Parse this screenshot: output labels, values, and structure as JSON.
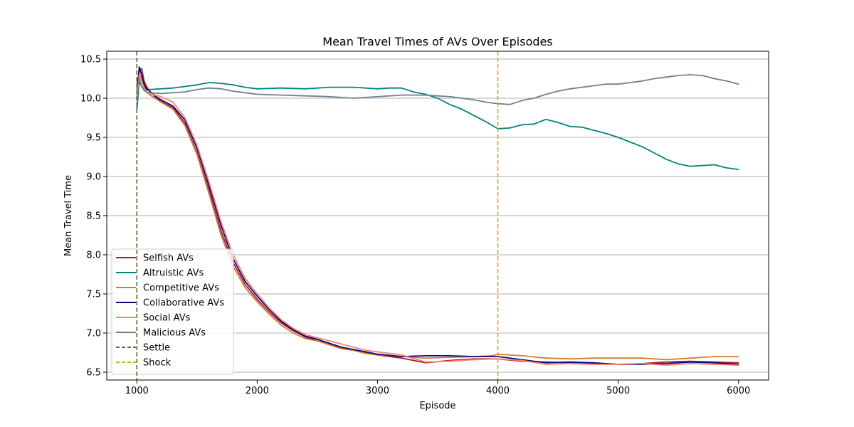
{
  "chart_data": {
    "type": "line",
    "title": "Mean Travel Times of AVs Over Episodes",
    "xlabel": "Episode",
    "ylabel": "Mean Travel Time",
    "xlim": [
      750,
      6250
    ],
    "ylim": [
      6.4,
      10.6
    ],
    "xticks": [
      1000,
      2000,
      3000,
      4000,
      5000,
      6000
    ],
    "xtick_labels": [
      "1000",
      "2000",
      "3000",
      "4000",
      "5000",
      "6000"
    ],
    "yticks": [
      6.5,
      7.0,
      7.5,
      8.0,
      8.5,
      9.0,
      9.5,
      10.0,
      10.5
    ],
    "ytick_labels": [
      "6.5",
      "7.0",
      "7.5",
      "8.0",
      "8.5",
      "9.0",
      "9.5",
      "10.0",
      "10.5"
    ],
    "grid": "horizontal",
    "legend_position": "lower-left",
    "series": [
      {
        "name": "Selfish AVs",
        "color": "#b2182b",
        "x": [
          1000,
          1020,
          1040,
          1060,
          1080,
          1100,
          1150,
          1200,
          1300,
          1400,
          1500,
          1600,
          1700,
          1800,
          1900,
          2000,
          2100,
          2200,
          2300,
          2400,
          2500,
          2600,
          2700,
          2800,
          2900,
          3000,
          3200,
          3400,
          3600,
          3800,
          4000,
          4200,
          4400,
          4600,
          4800,
          5000,
          5200,
          5400,
          5600,
          5800,
          6000
        ],
        "y": [
          10.1,
          10.35,
          10.38,
          10.22,
          10.15,
          10.1,
          10.02,
          9.96,
          9.88,
          9.68,
          9.3,
          8.82,
          8.3,
          7.9,
          7.62,
          7.43,
          7.27,
          7.13,
          7.03,
          6.95,
          6.9,
          6.86,
          6.81,
          6.78,
          6.75,
          6.72,
          6.68,
          6.62,
          6.65,
          6.67,
          6.67,
          6.64,
          6.63,
          6.62,
          6.61,
          6.6,
          6.61,
          6.63,
          6.64,
          6.63,
          6.62
        ]
      },
      {
        "name": "Altruistic AVs",
        "color": "#00857a",
        "x": [
          1000,
          1020,
          1040,
          1060,
          1080,
          1100,
          1200,
          1300,
          1400,
          1500,
          1600,
          1700,
          1800,
          1900,
          2000,
          2200,
          2400,
          2600,
          2800,
          3000,
          3100,
          3200,
          3300,
          3400,
          3500,
          3600,
          3700,
          3800,
          3900,
          4000,
          4100,
          4200,
          4300,
          4400,
          4500,
          4600,
          4700,
          4800,
          4900,
          5000,
          5100,
          5200,
          5300,
          5400,
          5500,
          5600,
          5700,
          5800,
          5900,
          6000
        ],
        "y": [
          9.85,
          10.22,
          10.15,
          10.12,
          10.1,
          10.11,
          10.12,
          10.13,
          10.15,
          10.17,
          10.2,
          10.19,
          10.17,
          10.14,
          10.12,
          10.13,
          10.12,
          10.14,
          10.14,
          10.12,
          10.13,
          10.13,
          10.08,
          10.05,
          10.0,
          9.92,
          9.86,
          9.78,
          9.7,
          9.61,
          9.62,
          9.66,
          9.67,
          9.73,
          9.69,
          9.64,
          9.63,
          9.59,
          9.55,
          9.5,
          9.44,
          9.38,
          9.3,
          9.22,
          9.16,
          9.13,
          9.14,
          9.15,
          9.11,
          9.09
        ]
      },
      {
        "name": "Competitive AVs",
        "color": "#cd7f32",
        "x": [
          1000,
          1020,
          1040,
          1060,
          1080,
          1100,
          1150,
          1200,
          1300,
          1400,
          1500,
          1600,
          1700,
          1800,
          1900,
          2000,
          2100,
          2200,
          2300,
          2400,
          2500,
          2600,
          2700,
          2800,
          2900,
          3000,
          3200,
          3400,
          3600,
          3800,
          3950,
          4000,
          4200,
          4400,
          4600,
          4800,
          5000,
          5200,
          5400,
          5600,
          5800,
          6000
        ],
        "y": [
          10.2,
          10.32,
          10.25,
          10.15,
          10.08,
          10.05,
          10.0,
          9.95,
          9.86,
          9.65,
          9.28,
          8.78,
          8.25,
          7.85,
          7.58,
          7.4,
          7.24,
          7.1,
          7.0,
          6.93,
          6.9,
          6.85,
          6.8,
          6.78,
          6.74,
          6.72,
          6.7,
          6.68,
          6.69,
          6.7,
          6.71,
          6.73,
          6.71,
          6.68,
          6.67,
          6.68,
          6.68,
          6.68,
          6.66,
          6.68,
          6.7,
          6.7
        ]
      },
      {
        "name": "Collaborative AVs",
        "color": "#0a0a80",
        "x": [
          1000,
          1020,
          1040,
          1060,
          1080,
          1100,
          1150,
          1200,
          1300,
          1400,
          1500,
          1600,
          1700,
          1800,
          1900,
          2000,
          2100,
          2200,
          2300,
          2400,
          2500,
          2600,
          2700,
          2800,
          2900,
          3000,
          3200,
          3400,
          3600,
          3800,
          4000,
          4200,
          4400,
          4600,
          4800,
          5000,
          5200,
          5400,
          5600,
          5800,
          6000
        ],
        "y": [
          10.05,
          10.4,
          10.3,
          10.18,
          10.12,
          10.1,
          10.03,
          9.98,
          9.9,
          9.72,
          9.36,
          8.88,
          8.37,
          7.95,
          7.66,
          7.47,
          7.3,
          7.15,
          7.04,
          6.96,
          6.92,
          6.87,
          6.82,
          6.79,
          6.76,
          6.73,
          6.7,
          6.71,
          6.71,
          6.7,
          6.7,
          6.66,
          6.62,
          6.63,
          6.62,
          6.6,
          6.6,
          6.61,
          6.63,
          6.62,
          6.6
        ]
      },
      {
        "name": "Social AVs",
        "color": "#fa8072",
        "x": [
          1000,
          1020,
          1040,
          1060,
          1080,
          1100,
          1150,
          1200,
          1300,
          1400,
          1500,
          1600,
          1700,
          1800,
          1900,
          2000,
          2100,
          2200,
          2300,
          2400,
          2500,
          2600,
          2700,
          2800,
          2900,
          3000,
          3200,
          3400,
          3600,
          3800,
          4000,
          4200,
          4400,
          4600,
          4800,
          5000,
          5200,
          5400,
          5600,
          5800,
          6000
        ],
        "y": [
          10.0,
          10.3,
          10.22,
          10.12,
          10.08,
          10.06,
          10.04,
          10.02,
          9.95,
          9.75,
          9.4,
          8.93,
          8.42,
          8.0,
          7.7,
          7.5,
          7.32,
          7.17,
          7.06,
          6.98,
          6.94,
          6.9,
          6.86,
          6.82,
          6.78,
          6.76,
          6.72,
          6.63,
          6.64,
          6.66,
          6.67,
          6.65,
          6.6,
          6.61,
          6.6,
          6.6,
          6.61,
          6.59,
          6.61,
          6.6,
          6.59
        ]
      },
      {
        "name": "Malicious AVs",
        "color": "#708090",
        "x": [
          1000,
          1020,
          1040,
          1060,
          1080,
          1100,
          1200,
          1300,
          1400,
          1500,
          1600,
          1700,
          1800,
          1900,
          2000,
          2200,
          2400,
          2600,
          2800,
          3000,
          3200,
          3400,
          3600,
          3800,
          3900,
          4000,
          4100,
          4200,
          4300,
          4400,
          4500,
          4600,
          4700,
          4800,
          4900,
          5000,
          5100,
          5200,
          5300,
          5400,
          5500,
          5600,
          5700,
          5800,
          5900,
          6000
        ],
        "y": [
          10.1,
          10.25,
          10.15,
          10.1,
          10.08,
          10.07,
          10.06,
          10.07,
          10.08,
          10.11,
          10.13,
          10.12,
          10.09,
          10.07,
          10.05,
          10.04,
          10.03,
          10.02,
          10.0,
          10.02,
          10.04,
          10.04,
          10.02,
          9.98,
          9.95,
          9.93,
          9.92,
          9.97,
          10.0,
          10.05,
          10.09,
          10.12,
          10.14,
          10.16,
          10.18,
          10.18,
          10.2,
          10.22,
          10.25,
          10.27,
          10.29,
          10.3,
          10.29,
          10.25,
          10.22,
          10.18
        ]
      }
    ],
    "reference_lines": [
      {
        "name": "Settle",
        "x": 1000,
        "color": "#556b2f",
        "style": "dashed"
      },
      {
        "name": "Shock",
        "x": 4000,
        "color": "#daa520",
        "style": "dashed"
      }
    ]
  }
}
